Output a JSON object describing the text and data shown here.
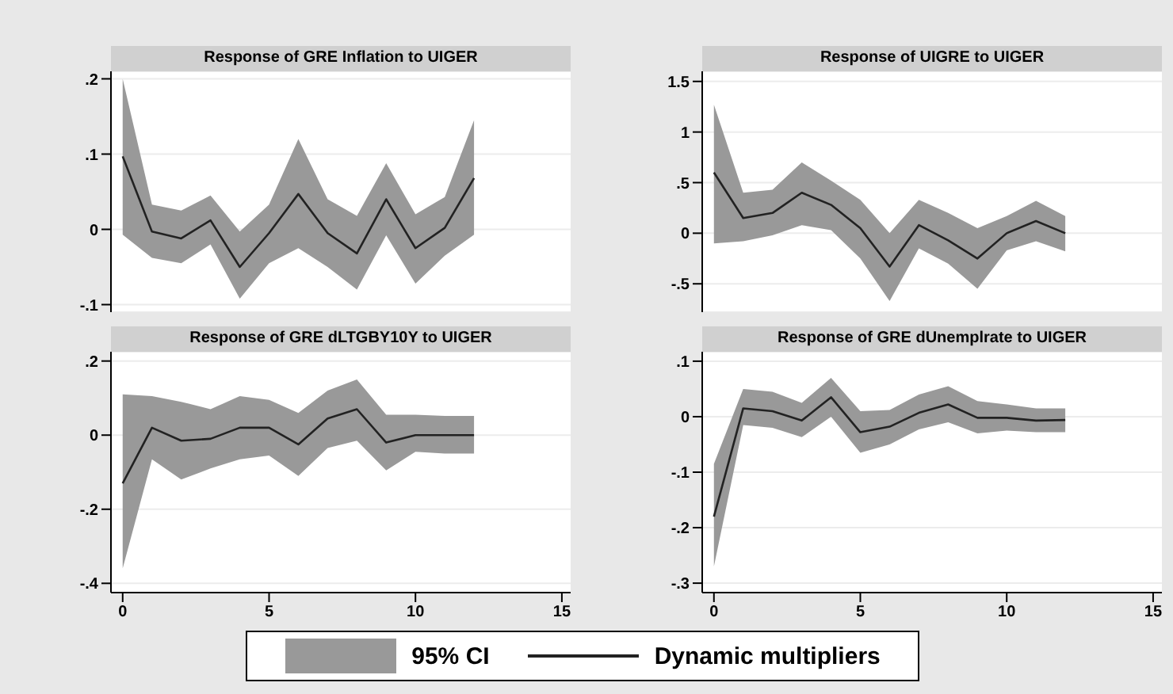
{
  "chart_data": [
    {
      "type": "line",
      "title": "Response of GRE Inflation to UIGER",
      "x": [
        0,
        1,
        2,
        3,
        4,
        5,
        6,
        7,
        8,
        9,
        10,
        11,
        12
      ],
      "xlim": [
        -0.4,
        15.3
      ],
      "xticks": [
        0,
        5,
        10,
        15
      ],
      "ylim": [
        -0.11,
        0.21
      ],
      "yticks": [
        {
          "value": -0.1,
          "label": "-.1"
        },
        0,
        {
          "value": 0.1,
          "label": ".1"
        },
        {
          "value": 0.2,
          "label": ".2"
        }
      ],
      "grid": "y",
      "tick_labels": "y",
      "series": [
        {
          "color": "#222222",
          "values": [
            0.097,
            -0.003,
            -0.012,
            0.012,
            -0.05,
            -0.005,
            0.047,
            -0.005,
            -0.032,
            0.04,
            -0.025,
            0.002,
            0.068
          ],
          "lower": [
            -0.007,
            -0.038,
            -0.045,
            -0.02,
            -0.092,
            -0.045,
            -0.025,
            -0.05,
            -0.08,
            -0.008,
            -0.072,
            -0.035,
            -0.007
          ],
          "upper": [
            0.2,
            0.033,
            0.025,
            0.045,
            -0.003,
            0.033,
            0.12,
            0.04,
            0.018,
            0.088,
            0.02,
            0.043,
            0.145
          ]
        }
      ]
    },
    {
      "type": "line",
      "title": "Response of UIGRE to UIGER",
      "x": [
        0,
        1,
        2,
        3,
        4,
        5,
        6,
        7,
        8,
        9,
        10,
        11,
        12
      ],
      "xlim": [
        -0.4,
        15.3
      ],
      "xticks": [
        0,
        5,
        10,
        15
      ],
      "ylim": [
        -0.78,
        1.6
      ],
      "yticks": [
        {
          "value": -0.5,
          "label": "-.5"
        },
        0,
        {
          "value": 0.5,
          "label": ".5"
        },
        1,
        1.5
      ],
      "grid": "y",
      "tick_labels": "y",
      "series": [
        {
          "color": "#222222",
          "values": [
            0.6,
            0.15,
            0.2,
            0.4,
            0.28,
            0.05,
            -0.33,
            0.08,
            -0.07,
            -0.25,
            0.0,
            0.12,
            0.0
          ],
          "lower": [
            -0.1,
            -0.08,
            -0.02,
            0.08,
            0.03,
            -0.25,
            -0.67,
            -0.15,
            -0.3,
            -0.55,
            -0.17,
            -0.08,
            -0.18
          ],
          "upper": [
            1.27,
            0.4,
            0.43,
            0.7,
            0.52,
            0.33,
            0.0,
            0.33,
            0.2,
            0.05,
            0.17,
            0.32,
            0.17
          ]
        }
      ]
    },
    {
      "type": "line",
      "title": "Response of GRE dLTGBY10Y to UIGER",
      "x": [
        0,
        1,
        2,
        3,
        4,
        5,
        6,
        7,
        8,
        9,
        10,
        11,
        12
      ],
      "xlim": [
        -0.4,
        15.3
      ],
      "xticks": [
        0,
        5,
        10,
        15
      ],
      "ylim": [
        -0.425,
        0.225
      ],
      "yticks": [
        {
          "value": -0.4,
          "label": "-.4"
        },
        {
          "value": -0.2,
          "label": "-.2"
        },
        0,
        {
          "value": 0.2,
          "label": ".2"
        }
      ],
      "grid": "y",
      "series": [
        {
          "color": "#222222",
          "values": [
            -0.13,
            0.02,
            -0.015,
            -0.01,
            0.02,
            0.02,
            -0.025,
            0.045,
            0.07,
            -0.02,
            0.0,
            0.0,
            0.0
          ],
          "lower": [
            -0.36,
            -0.065,
            -0.12,
            -0.09,
            -0.065,
            -0.055,
            -0.11,
            -0.035,
            -0.015,
            -0.095,
            -0.045,
            -0.05,
            -0.05
          ],
          "upper": [
            0.11,
            0.105,
            0.09,
            0.07,
            0.105,
            0.095,
            0.06,
            0.12,
            0.15,
            0.055,
            0.055,
            0.052,
            0.052
          ]
        }
      ]
    },
    {
      "type": "line",
      "title": "Response of GRE dUnemplrate to UIGER",
      "x": [
        0,
        1,
        2,
        3,
        4,
        5,
        6,
        7,
        8,
        9,
        10,
        11,
        12
      ],
      "xlim": [
        -0.4,
        15.3
      ],
      "xticks": [
        0,
        5,
        10,
        15
      ],
      "ylim": [
        -0.317,
        0.117
      ],
      "yticks": [
        {
          "value": -0.3,
          "label": "-.3"
        },
        {
          "value": -0.2,
          "label": "-.2"
        },
        {
          "value": -0.1,
          "label": "-.1"
        },
        0,
        {
          "value": 0.1,
          "label": ".1"
        }
      ],
      "grid": "y",
      "legend": "bottom",
      "annotations": [
        "95% CI"
      ],
      "series": [
        {
          "name": "Dynamic multipliers",
          "color": "#222222",
          "values": [
            -0.18,
            0.015,
            0.01,
            -0.007,
            0.035,
            -0.028,
            -0.018,
            0.007,
            0.022,
            -0.002,
            -0.002,
            -0.007,
            -0.006
          ],
          "lower": [
            -0.27,
            -0.015,
            -0.02,
            -0.037,
            0.0,
            -0.065,
            -0.05,
            -0.023,
            -0.01,
            -0.03,
            -0.025,
            -0.028,
            -0.028
          ],
          "upper": [
            -0.085,
            0.05,
            0.045,
            0.025,
            0.07,
            0.01,
            0.012,
            0.04,
            0.055,
            0.028,
            0.022,
            0.015,
            0.015
          ]
        }
      ]
    }
  ]
}
